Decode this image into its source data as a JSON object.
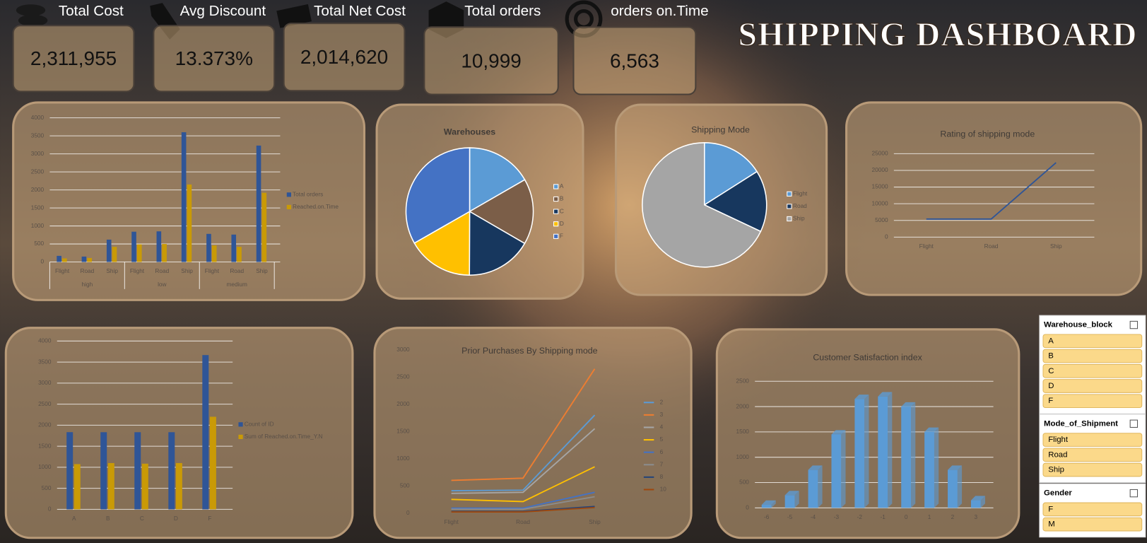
{
  "title": "SHIPPING DASHBOARD",
  "kpis": [
    {
      "label": "Total Cost",
      "value": "2,311,955"
    },
    {
      "label": "Avg Discount",
      "value": "13.373%"
    },
    {
      "label": "Total Net Cost",
      "value": "2,014,620"
    },
    {
      "label": "Total orders",
      "value": "10,999"
    },
    {
      "label": "orders on.Time",
      "value": "6,563"
    }
  ],
  "chart_data": [
    {
      "type": "bar",
      "categories": [
        "Flight",
        "Road",
        "Ship",
        "Flight",
        "Road",
        "Ship",
        "Flight",
        "Road",
        "Ship"
      ],
      "groups": [
        "high",
        "low",
        "medium"
      ],
      "series": [
        {
          "name": "Total orders",
          "color": "#2f5597",
          "values": [
            170,
            150,
            620,
            840,
            850,
            3600,
            780,
            760,
            3230
          ]
        },
        {
          "name": "Reached.on.Time",
          "color": "#c99a06",
          "values": [
            100,
            110,
            420,
            490,
            500,
            2150,
            460,
            420,
            1920
          ]
        }
      ],
      "ylim": [
        0,
        4000
      ],
      "yticks": [
        0,
        500,
        1000,
        1500,
        2000,
        2500,
        3000,
        3500,
        4000
      ],
      "grid": true,
      "legend": "right"
    },
    {
      "type": "pie",
      "title": "Warehouses",
      "categories": [
        "A",
        "B",
        "C",
        "D",
        "F"
      ],
      "values": [
        16.7,
        16.7,
        16.7,
        16.7,
        33.3
      ],
      "colors": [
        "#5b9bd5",
        "#7b5e48",
        "#17375e",
        "#ffc000",
        "#4472c4"
      ],
      "legend": "right"
    },
    {
      "type": "pie",
      "title": "Shipping Mode",
      "categories": [
        "Flight",
        "Road",
        "Ship"
      ],
      "values": [
        16,
        16,
        68
      ],
      "colors": [
        "#5b9bd5",
        "#17375e",
        "#a5a5a5"
      ],
      "legend": "right"
    },
    {
      "type": "line",
      "title": "Rating of shipping mode",
      "categories": [
        "Flight",
        "Road",
        "Ship"
      ],
      "series": [
        {
          "color": "#2f5597",
          "values": [
            5400,
            5400,
            22300
          ]
        }
      ],
      "ylim": [
        0,
        25000
      ],
      "yticks": [
        0,
        5000,
        10000,
        15000,
        20000,
        25000
      ],
      "grid": true
    },
    {
      "type": "bar",
      "categories": [
        "A",
        "B",
        "C",
        "D",
        "F"
      ],
      "series": [
        {
          "name": "Count of ID",
          "color": "#2f5597",
          "values": [
            1834,
            1833,
            1833,
            1833,
            3666
          ]
        },
        {
          "name": "Sum of Reached.on.Time_Y.N",
          "color": "#c99a06",
          "values": [
            1075,
            1100,
            1085,
            1100,
            2200
          ]
        }
      ],
      "ylim": [
        0,
        4000
      ],
      "yticks": [
        0,
        500,
        1000,
        1500,
        2000,
        2500,
        3000,
        3500,
        4000
      ],
      "grid": true,
      "legend": "right"
    },
    {
      "type": "line",
      "title": "Prior Purchases By Shipping mode",
      "categories": [
        "Flight",
        "Road",
        "Ship"
      ],
      "series": [
        {
          "name": "2",
          "color": "#5b9bd5",
          "values": [
            410,
            420,
            1800
          ]
        },
        {
          "name": "3",
          "color": "#ed7d31",
          "values": [
            600,
            640,
            2650
          ]
        },
        {
          "name": "4",
          "color": "#a5a5a5",
          "values": [
            360,
            380,
            1550
          ]
        },
        {
          "name": "5",
          "color": "#ffc000",
          "values": [
            250,
            210,
            850
          ]
        },
        {
          "name": "6",
          "color": "#4472c4",
          "values": [
            90,
            90,
            380
          ]
        },
        {
          "name": "7",
          "color": "#8c8c8c",
          "values": [
            70,
            70,
            300
          ]
        },
        {
          "name": "8",
          "color": "#264478",
          "values": [
            30,
            30,
            120
          ]
        },
        {
          "name": "10",
          "color": "#9e480e",
          "values": [
            20,
            20,
            100
          ]
        }
      ],
      "ylim": [
        0,
        3000
      ],
      "yticks": [
        0,
        500,
        1000,
        1500,
        2000,
        2500,
        3000
      ],
      "grid": false,
      "legend": "right"
    },
    {
      "type": "bar",
      "title": "Customer Satisfaction index",
      "categories": [
        "-6",
        "-5",
        "-4",
        "-3",
        "-2",
        "-1",
        "0",
        "1",
        "2",
        "3"
      ],
      "series": [
        {
          "color": "#5b9bd5",
          "values": [
            60,
            250,
            750,
            1450,
            2150,
            2200,
            2000,
            1500,
            750,
            150
          ]
        }
      ],
      "ylim": [
        0,
        2500
      ],
      "yticks": [
        0,
        500,
        1000,
        1500,
        2000,
        2500
      ],
      "grid": true,
      "three_d": true
    }
  ],
  "slicers": [
    {
      "title": "Warehouse_block",
      "items": [
        "A",
        "B",
        "C",
        "D",
        "F"
      ]
    },
    {
      "title": "Mode_of_Shipment",
      "items": [
        "Flight",
        "Road",
        "Ship"
      ]
    },
    {
      "title": "Gender",
      "items": [
        "F",
        "M"
      ]
    }
  ]
}
